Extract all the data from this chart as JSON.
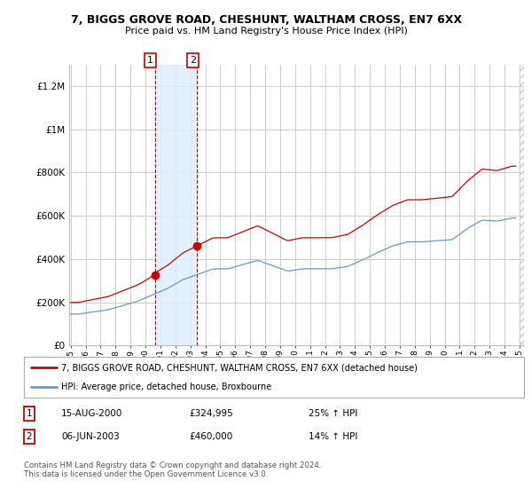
{
  "title1": "7, BIGGS GROVE ROAD, CHESHUNT, WALTHAM CROSS, EN7 6XX",
  "title2": "Price paid vs. HM Land Registry's House Price Index (HPI)",
  "legend_line1": "7, BIGGS GROVE ROAD, CHESHUNT, WALTHAM CROSS, EN7 6XX (detached house)",
  "legend_line2": "HPI: Average price, detached house, Broxbourne",
  "footnote": "Contains HM Land Registry data © Crown copyright and database right 2024.\nThis data is licensed under the Open Government Licence v3.0.",
  "sale1_date": "15-AUG-2000",
  "sale1_price": "£324,995",
  "sale1_hpi": "25% ↑ HPI",
  "sale2_date": "06-JUN-2003",
  "sale2_price": "£460,000",
  "sale2_hpi": "14% ↑ HPI",
  "red_color": "#cc0000",
  "blue_color": "#6699cc",
  "background_color": "#ffffff",
  "grid_color": "#cccccc",
  "highlight_color": "#ddeeff",
  "sale1_x": 2000.625,
  "sale1_y": 324995,
  "sale2_x": 2003.46,
  "sale2_y": 460000,
  "xmin": 1994.9,
  "xmax": 2025.3,
  "ylim": [
    0,
    1300000
  ],
  "yticks": [
    0,
    200000,
    400000,
    600000,
    800000,
    1000000,
    1200000
  ],
  "ytick_labels": [
    "£0",
    "£200K",
    "£400K",
    "£600K",
    "£800K",
    "£1M",
    "£1.2M"
  ]
}
